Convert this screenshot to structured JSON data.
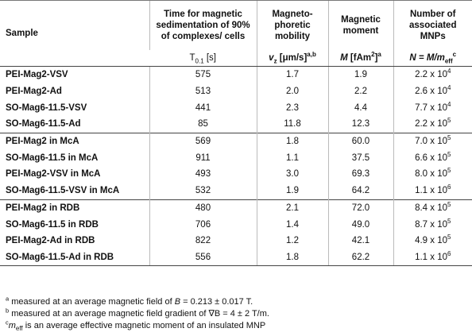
{
  "header": {
    "sample": "Sample",
    "col1_title": "Time for magnetic sedimentation of 90% of complexes/ cells",
    "col2_title": "Magneto-phoretic mobility",
    "col3_title": "Magnetic moment",
    "col4_title": "Number of associated MNPs",
    "col1_unit_pre": "T",
    "col1_unit_sub": "0.1",
    "col1_unit_post": " [s]",
    "col2_unit_pre": "v",
    "col2_unit_sub": "z",
    "col2_unit_post": " [μm/s]",
    "col2_unit_sup": "a,b",
    "col3_unit_pre": "M",
    "col3_unit_post": " [fAm",
    "col3_unit_sq": "2",
    "col3_unit_close": "]",
    "col3_unit_sup": "a",
    "col4_unit_pre": "N = M/m",
    "col4_unit_sub": "eff",
    "col4_unit_sup": "c"
  },
  "groups": [
    {
      "rows": [
        {
          "sample": "PEI-Mag2-VSV",
          "t": "575",
          "v": "1.7",
          "m": "1.9",
          "n_base": "2.2 x 10",
          "n_exp": "4"
        },
        {
          "sample": "PEI-Mag2-Ad",
          "t": "513",
          "v": "2.0",
          "m": "2.2",
          "n_base": "2.6 x 10",
          "n_exp": "4"
        },
        {
          "sample": "SO-Mag6-11.5-VSV",
          "t": "441",
          "v": "2.3",
          "m": "4.4",
          "n_base": "7.7 x 10",
          "n_exp": "4"
        },
        {
          "sample": "SO-Mag6-11.5-Ad",
          "t": "85",
          "v": "11.8",
          "m": "12.3",
          "n_base": "2.2 x 10",
          "n_exp": "5"
        }
      ]
    },
    {
      "rows": [
        {
          "sample": "PEI-Mag2 in McA",
          "t": "569",
          "v": "1.8",
          "m": "60.0",
          "n_base": "7.0 x 10",
          "n_exp": "5"
        },
        {
          "sample": "SO-Mag6-11.5 in McA",
          "t": "911",
          "v": "1.1",
          "m": "37.5",
          "n_base": "6.6 x 10",
          "n_exp": "5"
        },
        {
          "sample": "PEI-Mag2-VSV in McA",
          "t": "493",
          "v": "3.0",
          "m": "69.3",
          "n_base": "8.0 x 10",
          "n_exp": "5"
        },
        {
          "sample": "SO-Mag6-11.5-VSV in McA",
          "t": "532",
          "v": "1.9",
          "m": "64.2",
          "n_base": "1.1 x 10",
          "n_exp": "6"
        }
      ]
    },
    {
      "rows": [
        {
          "sample": "PEI-Mag2 in RDB",
          "t": "480",
          "v": "2.1",
          "m": "72.0",
          "n_base": "8.4 x 10",
          "n_exp": "5"
        },
        {
          "sample": "SO-Mag6-11.5 in RDB",
          "t": "706",
          "v": "1.4",
          "m": "49.0",
          "n_base": "8.7 x 10",
          "n_exp": "5"
        },
        {
          "sample": "PEI-Mag2-Ad in RDB",
          "t": "822",
          "v": "1.2",
          "m": "42.1",
          "n_base": "4.9 x 10",
          "n_exp": "5"
        },
        {
          "sample": "SO-Mag6-11.5-Ad in RDB",
          "t": "556",
          "v": "1.8",
          "m": "62.2",
          "n_base": "1.1 x 10",
          "n_exp": "6"
        }
      ]
    }
  ],
  "footnotes": {
    "a_mark": "a",
    "a_pre": " measured at an average magnetic field of ",
    "a_var": "B",
    "a_post": " = 0.213 ± 0.017 T.",
    "b_mark": "b",
    "b_text": " measured at an average magnetic field gradient of ∇B = 4 ± 2 T/m.",
    "c_mark": "c",
    "c_var": "m",
    "c_sub": "eff",
    "c_post": " is an average effective magnetic moment of an insulated MNP"
  }
}
